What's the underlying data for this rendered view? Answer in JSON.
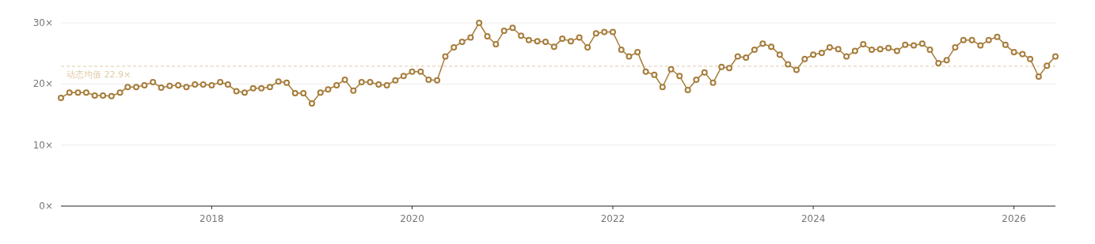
{
  "chart_data": {
    "type": "line",
    "x": [
      "2016-07",
      "2016-08",
      "2016-09",
      "2016-10",
      "2016-11",
      "2016-12",
      "2017-01",
      "2017-02",
      "2017-03",
      "2017-04",
      "2017-05",
      "2017-06",
      "2017-07",
      "2017-08",
      "2017-09",
      "2017-10",
      "2017-11",
      "2017-12",
      "2018-01",
      "2018-02",
      "2018-03",
      "2018-04",
      "2018-05",
      "2018-06",
      "2018-07",
      "2018-08",
      "2018-09",
      "2018-10",
      "2018-11",
      "2018-12",
      "2019-01",
      "2019-02",
      "2019-03",
      "2019-04",
      "2019-05",
      "2019-06",
      "2019-07",
      "2019-08",
      "2019-09",
      "2019-10",
      "2019-11",
      "2019-12",
      "2020-01",
      "2020-02",
      "2020-03",
      "2020-04",
      "2020-05",
      "2020-06",
      "2020-07",
      "2020-08",
      "2020-09",
      "2020-10",
      "2020-11",
      "2020-12",
      "2021-01",
      "2021-02",
      "2021-03",
      "2021-04",
      "2021-05",
      "2021-06",
      "2021-07",
      "2021-08",
      "2021-09",
      "2021-10",
      "2021-11",
      "2021-12",
      "2022-01",
      "2022-02",
      "2022-03",
      "2022-04",
      "2022-05",
      "2022-06",
      "2022-07",
      "2022-08",
      "2022-09",
      "2022-10",
      "2022-11",
      "2022-12",
      "2023-01",
      "2023-02",
      "2023-03",
      "2023-04",
      "2023-05",
      "2023-06",
      "2023-07",
      "2023-08",
      "2023-09",
      "2023-10",
      "2023-11",
      "2023-12",
      "2024-01",
      "2024-02",
      "2024-03",
      "2024-04",
      "2024-05",
      "2024-06",
      "2024-07",
      "2024-08",
      "2024-09",
      "2024-10",
      "2024-11",
      "2024-12",
      "2025-01",
      "2025-02",
      "2025-03",
      "2025-04",
      "2025-05",
      "2025-06",
      "2025-07",
      "2025-08",
      "2025-09",
      "2025-10",
      "2025-11",
      "2025-12",
      "2026-01",
      "2026-02",
      "2026-03",
      "2026-04",
      "2026-05",
      "2026-06"
    ],
    "series": [
      {
        "color": "#a67c3a",
        "values": [
          17.7,
          18.6,
          18.6,
          18.6,
          18.1,
          18.1,
          18.0,
          18.6,
          19.5,
          19.5,
          19.8,
          20.3,
          19.4,
          19.7,
          19.8,
          19.5,
          19.9,
          19.9,
          19.8,
          20.3,
          19.9,
          18.8,
          18.6,
          19.3,
          19.3,
          19.5,
          20.4,
          20.2,
          18.5,
          18.5,
          16.8,
          18.6,
          19.1,
          19.8,
          20.7,
          18.9,
          20.3,
          20.3,
          19.9,
          19.8,
          20.6,
          21.3,
          22.0,
          22.0,
          20.7,
          20.6,
          24.5,
          26.0,
          26.9,
          27.6,
          30.0,
          27.8,
          26.5,
          28.7,
          29.2,
          27.9,
          27.2,
          27.0,
          26.9,
          26.1,
          27.4,
          27.0,
          27.6,
          26.0,
          28.3,
          28.5,
          28.5,
          25.6,
          24.5,
          25.2,
          22.0,
          21.5,
          19.5,
          22.4,
          21.3,
          19.0,
          20.7,
          21.9,
          20.2,
          22.8,
          22.6,
          24.5,
          24.3,
          25.6,
          26.6,
          26.1,
          24.8,
          23.2,
          22.3,
          24.1,
          24.8,
          25.1,
          26.0,
          25.7,
          24.5,
          25.4,
          26.5,
          25.6,
          25.7,
          25.9,
          25.4,
          26.4,
          26.3,
          26.6,
          25.6,
          23.4,
          23.9,
          26.0,
          27.2,
          27.2,
          26.3,
          27.2,
          27.7,
          26.4,
          25.2,
          24.9,
          24.1,
          21.2,
          23.0,
          24.5
        ]
      }
    ],
    "xlim": [
      "2016-07",
      "2026-06"
    ],
    "xticks": [
      {
        "value": "2018",
        "label": "2018"
      },
      {
        "value": "2020",
        "label": "2020"
      },
      {
        "value": "2022",
        "label": "2022"
      },
      {
        "value": "2024",
        "label": "2024"
      },
      {
        "value": "2026",
        "label": "2026"
      }
    ],
    "ylim": [
      0,
      30
    ],
    "yticks": [
      {
        "value": 0,
        "label": "0×"
      },
      {
        "value": 10,
        "label": "10×"
      },
      {
        "value": 20,
        "label": "20×"
      },
      {
        "value": 30,
        "label": "30×"
      }
    ],
    "grid": "y",
    "marker": "circle",
    "line_style": "solid",
    "ref_lines": [
      {
        "axis": "y",
        "value": 22.9,
        "label": "动态均值 22.9×",
        "color": "#e0c9a6",
        "line_style": "dashed"
      }
    ]
  }
}
